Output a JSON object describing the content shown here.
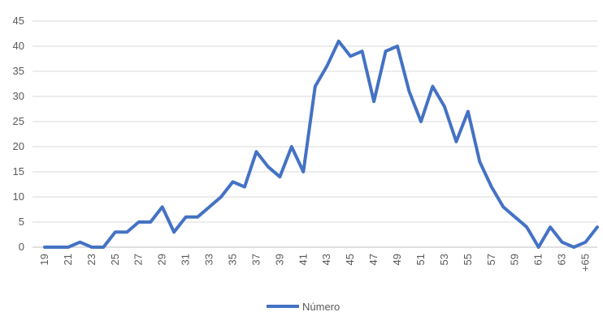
{
  "chart_data": {
    "type": "line",
    "title": "",
    "xlabel": "",
    "ylabel": "",
    "categories": [
      "19",
      "20",
      "21",
      "22",
      "23",
      "24",
      "25",
      "26",
      "27",
      "28",
      "29",
      "30",
      "31",
      "32",
      "33",
      "34",
      "35",
      "36",
      "37",
      "38",
      "39",
      "40",
      "41",
      "42",
      "43",
      "44",
      "45",
      "46",
      "47",
      "48",
      "49",
      "50",
      "51",
      "52",
      "53",
      "54",
      "55",
      "56",
      "57",
      "58",
      "59",
      "60",
      "61",
      "62",
      "63",
      "64",
      "+65",
      "66"
    ],
    "x_tick_labels": [
      "19",
      "21",
      "23",
      "25",
      "27",
      "29",
      "31",
      "33",
      "35",
      "37",
      "39",
      "41",
      "43",
      "45",
      "47",
      "49",
      "51",
      "53",
      "55",
      "57",
      "59",
      "61",
      "63",
      "+65"
    ],
    "series": [
      {
        "name": "Número",
        "color": "#4472C4",
        "values": [
          0,
          0,
          0,
          1,
          0,
          0,
          3,
          3,
          5,
          5,
          8,
          3,
          6,
          6,
          8,
          10,
          13,
          12,
          19,
          16,
          14,
          20,
          15,
          32,
          36,
          41,
          38,
          39,
          29,
          39,
          40,
          31,
          25,
          32,
          28,
          21,
          27,
          17,
          12,
          8,
          6,
          4,
          0,
          4,
          1,
          0,
          1,
          4
        ]
      }
    ],
    "ylim": [
      0,
      45
    ],
    "y_ticks": [
      0,
      5,
      10,
      15,
      20,
      25,
      30,
      35,
      40,
      45
    ],
    "grid": true,
    "legend_position": "bottom"
  }
}
